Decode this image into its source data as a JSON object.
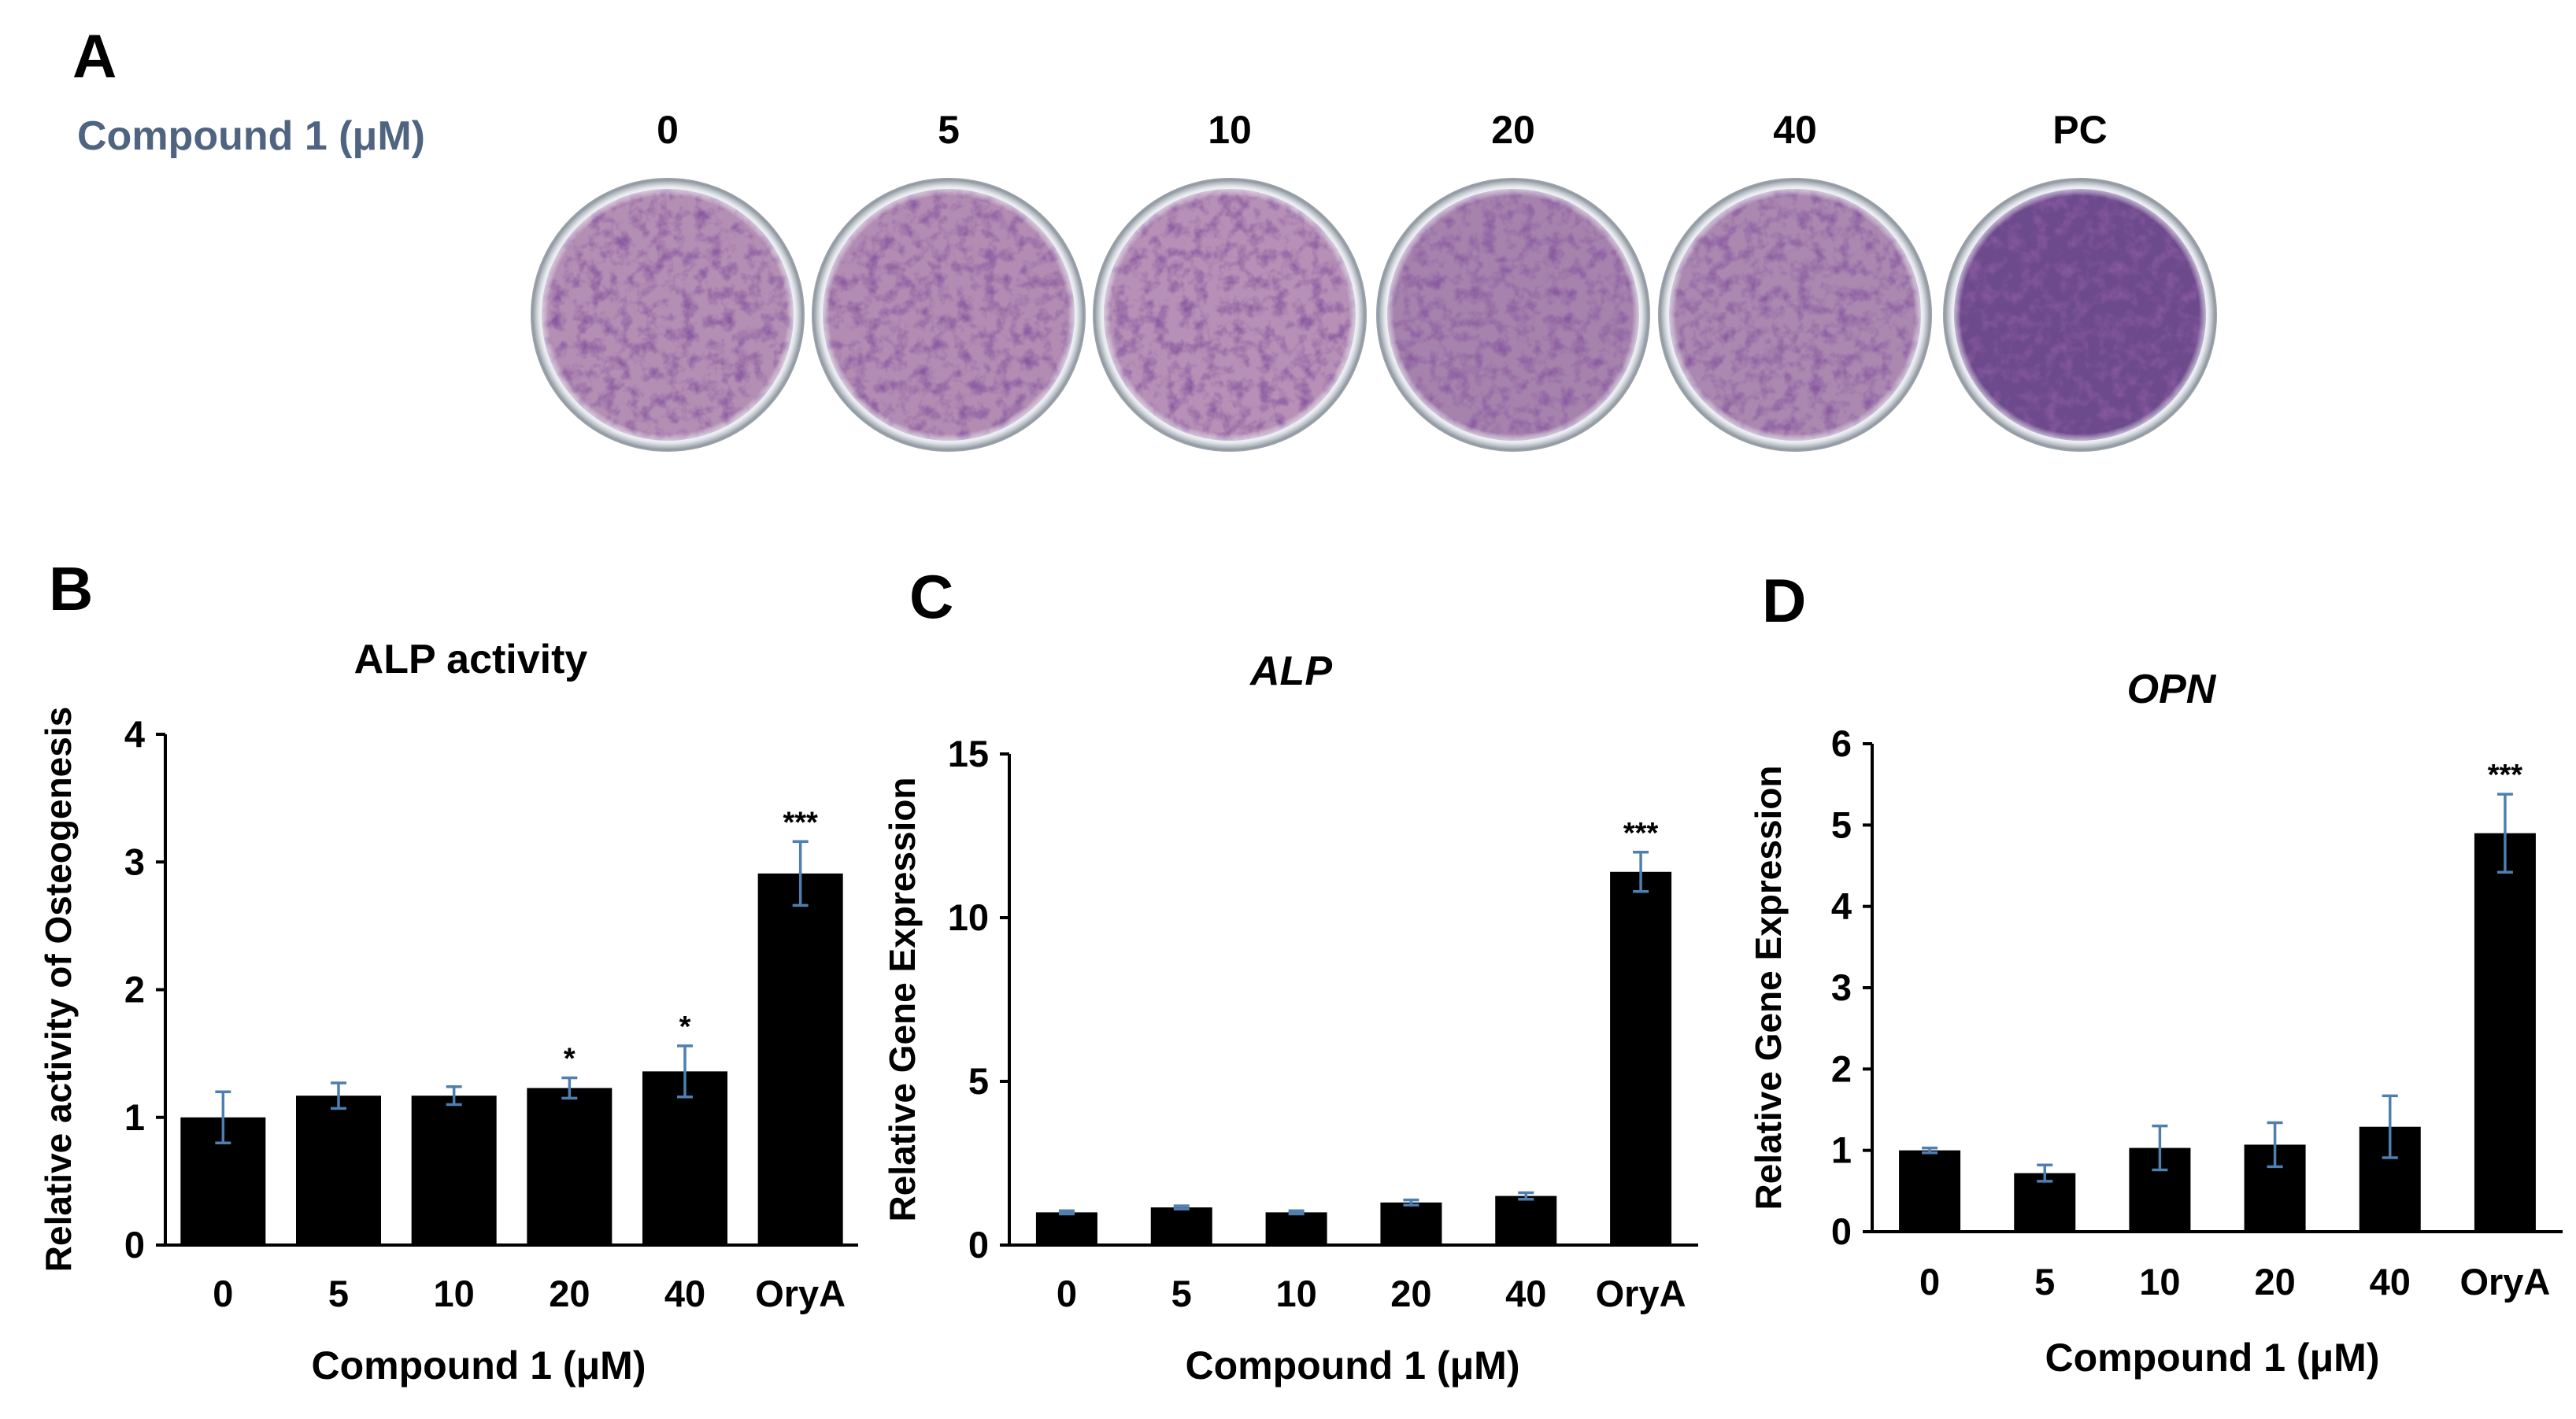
{
  "panel_a": {
    "letter": "A",
    "row_label": "Compound 1 (μM)",
    "doses": [
      "0",
      "5",
      "10",
      "20",
      "40",
      "PC"
    ],
    "dish_colors": [
      "#b48fb4",
      "#b28cb3",
      "#b690b6",
      "#a683ad",
      "#aa88b0",
      "#6c4a8c"
    ]
  },
  "chart_data": [
    {
      "id": "B",
      "type": "bar",
      "letter": "B",
      "title": "ALP activity",
      "title_italic": false,
      "xlabel": "Compound 1 (μM)",
      "ylabel": "Relative activity of Osteogenesis",
      "categories": [
        "0",
        "5",
        "10",
        "20",
        "40",
        "OryA"
      ],
      "values": [
        1.0,
        1.17,
        1.17,
        1.23,
        1.36,
        2.91
      ],
      "errors": [
        0.2,
        0.1,
        0.07,
        0.08,
        0.2,
        0.25
      ],
      "significance": [
        "",
        "",
        "",
        "*",
        "*",
        "***"
      ],
      "ylim": [
        0,
        4
      ],
      "yticks": [
        "0",
        "1",
        "2",
        "3",
        "4"
      ],
      "bar_color": "#000000",
      "error_color": "#4f7fb0"
    },
    {
      "id": "C",
      "type": "bar",
      "letter": "C",
      "title": "ALP",
      "title_italic": true,
      "xlabel": "Compound 1 (μM)",
      "ylabel": "Relative Gene Expression",
      "categories": [
        "0",
        "5",
        "10",
        "20",
        "40",
        "OryA"
      ],
      "values": [
        1.0,
        1.15,
        1.0,
        1.3,
        1.5,
        11.4
      ],
      "errors": [
        0.05,
        0.05,
        0.05,
        0.08,
        0.1,
        0.6
      ],
      "significance": [
        "",
        "",
        "",
        "",
        "",
        "***"
      ],
      "ylim": [
        0,
        15
      ],
      "yticks": [
        "0",
        "5",
        "10",
        "15"
      ],
      "bar_color": "#000000",
      "error_color": "#4f7fb0"
    },
    {
      "id": "D",
      "type": "bar",
      "letter": "D",
      "title": "OPN",
      "title_italic": true,
      "xlabel": "Compound 1 (μM)",
      "ylabel": "Relative Gene Expression",
      "categories": [
        "0",
        "5",
        "10",
        "20",
        "40",
        "OryA"
      ],
      "values": [
        1.0,
        0.72,
        1.03,
        1.07,
        1.29,
        4.9
      ],
      "errors": [
        0.03,
        0.1,
        0.27,
        0.27,
        0.38,
        0.48
      ],
      "significance": [
        "",
        "",
        "",
        "",
        "",
        "***"
      ],
      "ylim": [
        0,
        6
      ],
      "yticks": [
        "0",
        "1",
        "2",
        "3",
        "4",
        "5",
        "6"
      ],
      "bar_color": "#000000",
      "error_color": "#4f7fb0"
    }
  ]
}
